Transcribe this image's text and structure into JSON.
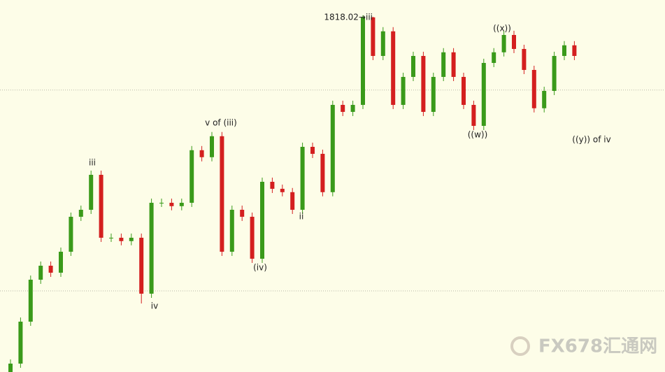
{
  "chart_data": {
    "type": "candlestick",
    "ylim": [
      1690.5,
      1823.5
    ],
    "reference_lines": [
      1791.3,
      1719.5
    ],
    "up_color": "#3a9a1a",
    "down_color": "#d41f1f",
    "open": [
      1688,
      1693.5,
      1708.5,
      1723.5,
      1728.5,
      1726,
      1733.5,
      1746,
      1748.5,
      1761,
      1738.5,
      1738.5,
      1737.3,
      1738.5,
      1718.5,
      1751,
      1751,
      1749.8,
      1751,
      1769.8,
      1767.3,
      1774.8,
      1733.5,
      1748.5,
      1746,
      1731,
      1758.5,
      1756,
      1754.8,
      1748.5,
      1771,
      1768.5,
      1754.8,
      1786,
      1783.5,
      1786,
      1817.3,
      1803.5,
      1812.3,
      1786,
      1796,
      1803.5,
      1783.5,
      1796,
      1804.8,
      1796,
      1786,
      1778.5,
      1801,
      1804.8,
      1811,
      1806,
      1798.5,
      1784.8,
      1791,
      1803.5,
      1807.3
    ],
    "high": [
      1695,
      1710,
      1725,
      1730,
      1730,
      1735,
      1747.5,
      1750,
      1762.5,
      1762.5,
      1740,
      1740,
      1740,
      1740,
      1752.5,
      1752.5,
      1752.5,
      1752.5,
      1771.3,
      1771.3,
      1776.3,
      1776.3,
      1750,
      1750,
      1747.5,
      1760,
      1760,
      1757.5,
      1756.3,
      1772.5,
      1772.5,
      1770,
      1787.5,
      1787.5,
      1787.5,
      1818.02,
      1817.5,
      1813.8,
      1813.8,
      1797.5,
      1805,
      1805,
      1797.5,
      1806.3,
      1806.3,
      1797.5,
      1787.5,
      1802.5,
      1806.3,
      1812.5,
      1812.5,
      1807.5,
      1800,
      1792.5,
      1805,
      1808.8,
      1808.8
    ],
    "low": [
      1686.5,
      1692,
      1707,
      1722,
      1724.5,
      1724.5,
      1732,
      1744.5,
      1747,
      1737,
      1737,
      1735.8,
      1735.8,
      1715,
      1717,
      1749.5,
      1748.3,
      1748.3,
      1749.5,
      1765.8,
      1765.8,
      1732,
      1732,
      1744.5,
      1729.5,
      1729.5,
      1754.5,
      1753.3,
      1747,
      1747,
      1767,
      1753.3,
      1753.3,
      1782,
      1782,
      1784.5,
      1802,
      1802,
      1784.5,
      1784.5,
      1794.5,
      1782,
      1782,
      1794.5,
      1794.5,
      1784.5,
      1777,
      1777,
      1799.5,
      1803.3,
      1804.5,
      1797,
      1783.3,
      1783.3,
      1789.5,
      1802,
      1802
    ],
    "close": [
      1693.5,
      1708.5,
      1723.5,
      1728.5,
      1726,
      1733.5,
      1746,
      1748.5,
      1761,
      1738.5,
      1738.5,
      1737.3,
      1738.5,
      1718.5,
      1751,
      1751,
      1749.8,
      1751,
      1769.8,
      1767.3,
      1774.8,
      1733.5,
      1748.5,
      1746,
      1731,
      1758.5,
      1756,
      1754.8,
      1748.5,
      1771,
      1768.5,
      1754.8,
      1786,
      1783.5,
      1786,
      1817.3,
      1803.5,
      1812.3,
      1786,
      1796,
      1803.5,
      1783.5,
      1796,
      1804.8,
      1796,
      1786,
      1778.5,
      1801,
      1804.8,
      1811,
      1806,
      1798.5,
      1784.8,
      1791,
      1803.5,
      1807.3,
      1803.5
    ],
    "annotations": [
      "iii",
      "iv",
      "v of (iii)",
      "(iv)",
      "ii",
      "1818.02→iii",
      "((x))",
      "((w))",
      "((y)) of iv"
    ],
    "watermark": "FX678汇通网"
  }
}
